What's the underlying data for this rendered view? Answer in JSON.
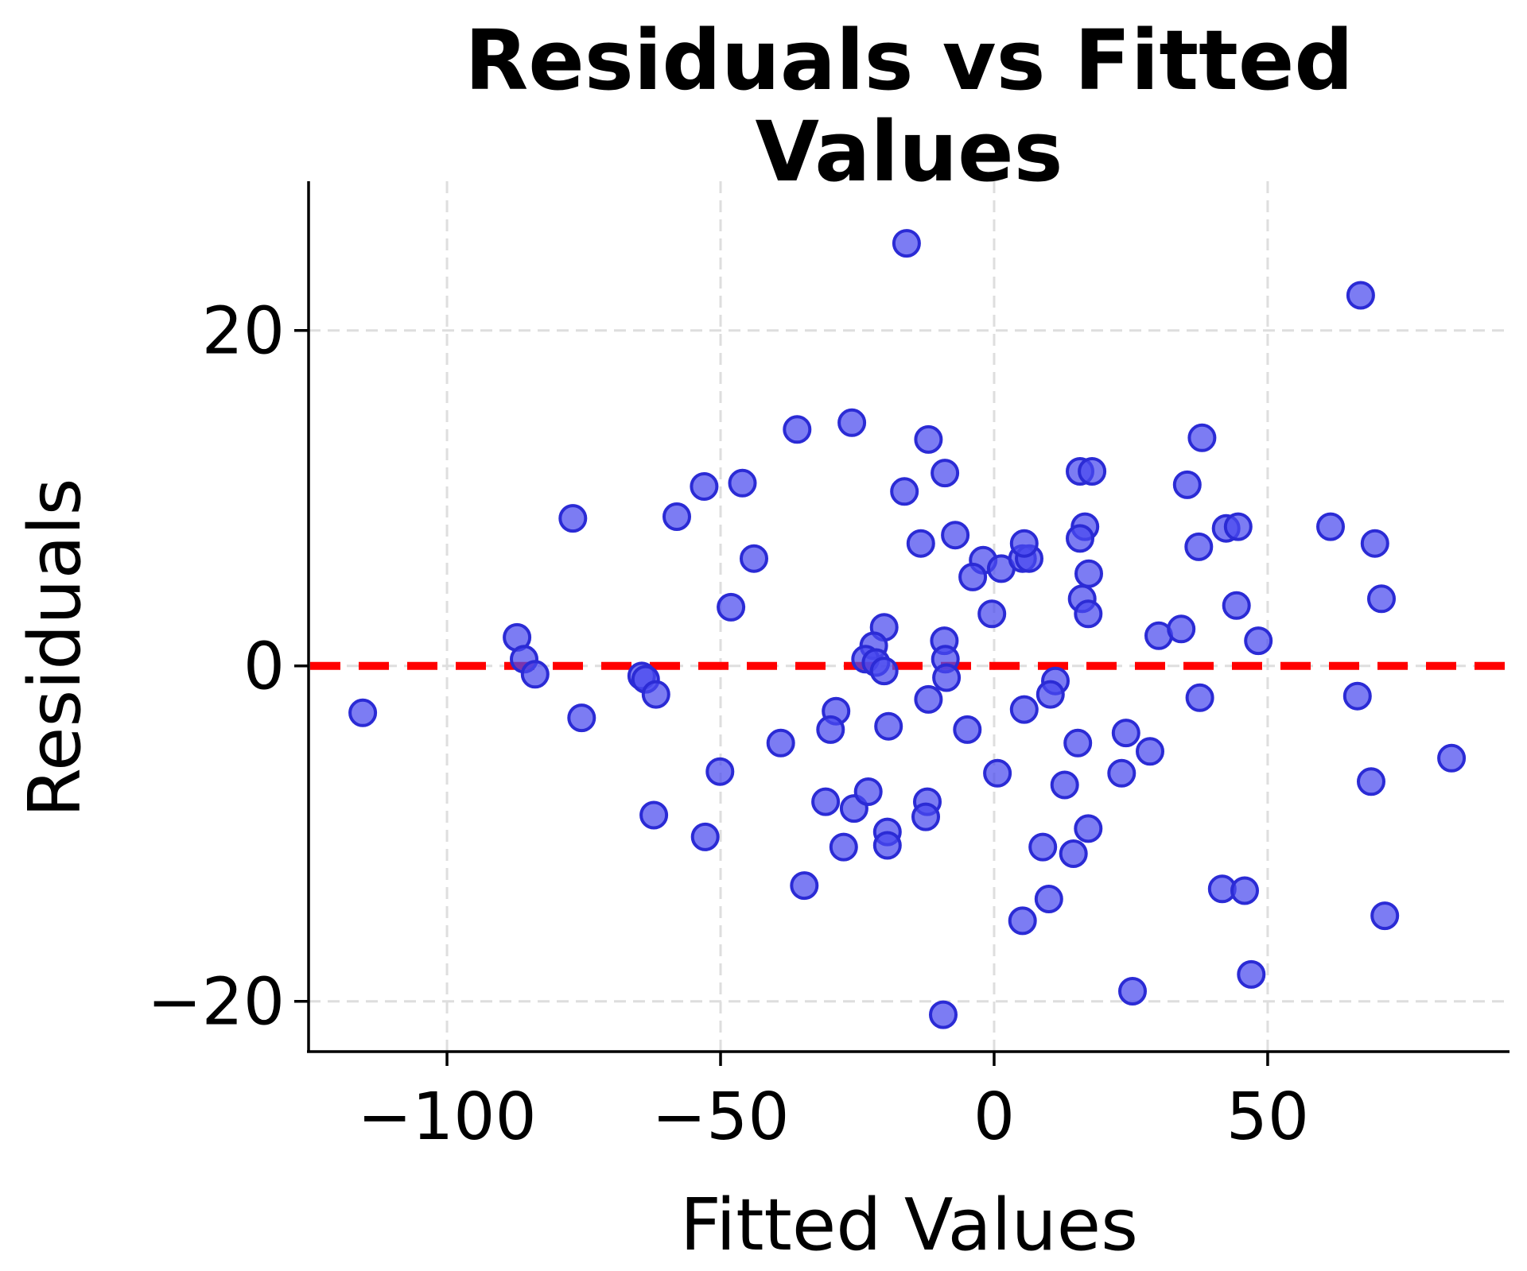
{
  "chart_data": {
    "type": "scatter",
    "title": "Residuals vs Fitted Values",
    "title_lines": [
      "Residuals vs Fitted",
      "Values"
    ],
    "xlabel": "Fitted Values",
    "ylabel": "Residuals",
    "xlim": [
      -125.3,
      94.2
    ],
    "ylim": [
      -23.0,
      28.9
    ],
    "x_ticks": [
      -100,
      -50,
      0,
      50
    ],
    "y_ticks": [
      -20,
      0,
      20
    ],
    "grid": true,
    "legend": false,
    "reference_line": {
      "y": 0,
      "color": "#ff0000",
      "style": "dashed"
    },
    "marker": {
      "fill": "#4a4aee",
      "fill_opacity": 0.72,
      "edge": "#2b2bd5",
      "radius": 16,
      "edge_width": 4
    },
    "grid_color": "#dedede",
    "spine_color": "#000000",
    "points": [
      [
        -16.0,
        25.2
      ],
      [
        67.0,
        22.1
      ],
      [
        -36.0,
        14.1
      ],
      [
        -26.0,
        14.5
      ],
      [
        -12.0,
        13.5
      ],
      [
        38.0,
        13.6
      ],
      [
        -9.0,
        11.5
      ],
      [
        15.7,
        11.6
      ],
      [
        17.9,
        11.6
      ],
      [
        -46.0,
        10.9
      ],
      [
        -53.0,
        10.7
      ],
      [
        35.3,
        10.8
      ],
      [
        -16.4,
        10.4
      ],
      [
        -77.0,
        8.8
      ],
      [
        -58.0,
        8.9
      ],
      [
        42.4,
        8.2
      ],
      [
        44.6,
        8.3
      ],
      [
        61.5,
        8.3
      ],
      [
        69.6,
        7.3
      ],
      [
        37.4,
        7.1
      ],
      [
        -13.4,
        7.3
      ],
      [
        -7.1,
        7.8
      ],
      [
        -43.9,
        6.4
      ],
      [
        -48.1,
        3.5
      ],
      [
        -2.0,
        6.3
      ],
      [
        -3.9,
        5.3
      ],
      [
        1.3,
        5.8
      ],
      [
        5.2,
        6.4
      ],
      [
        6.4,
        6.4
      ],
      [
        5.5,
        7.3
      ],
      [
        16.6,
        8.3
      ],
      [
        15.7,
        7.6
      ],
      [
        17.3,
        5.5
      ],
      [
        -0.4,
        3.1
      ],
      [
        16.1,
        4.0
      ],
      [
        17.2,
        3.1
      ],
      [
        44.3,
        3.6
      ],
      [
        70.8,
        4.0
      ],
      [
        30.1,
        1.8
      ],
      [
        34.2,
        2.2
      ],
      [
        48.3,
        1.5
      ],
      [
        -87.2,
        1.7
      ],
      [
        -85.9,
        0.4
      ],
      [
        -83.9,
        -0.5
      ],
      [
        -64.4,
        -0.6
      ],
      [
        -63.7,
        -0.8
      ],
      [
        -61.8,
        -1.7
      ],
      [
        -115.4,
        -2.8
      ],
      [
        -75.4,
        -3.1
      ],
      [
        -20.1,
        2.3
      ],
      [
        -22.0,
        1.2
      ],
      [
        -23.5,
        0.4
      ],
      [
        -21.6,
        0.2
      ],
      [
        -20.1,
        -0.3
      ],
      [
        -9.1,
        1.5
      ],
      [
        -8.9,
        0.4
      ],
      [
        -8.7,
        -0.7
      ],
      [
        -12.0,
        -2.0
      ],
      [
        -28.9,
        -2.7
      ],
      [
        -29.9,
        -3.8
      ],
      [
        -39.0,
        -4.6
      ],
      [
        -19.3,
        -3.6
      ],
      [
        -4.9,
        -3.8
      ],
      [
        5.5,
        -2.6
      ],
      [
        11.2,
        -0.9
      ],
      [
        10.3,
        -1.7
      ],
      [
        15.3,
        -4.6
      ],
      [
        37.6,
        -1.9
      ],
      [
        66.4,
        -1.8
      ],
      [
        24.1,
        -4.0
      ],
      [
        28.5,
        -5.1
      ],
      [
        23.3,
        -6.4
      ],
      [
        83.6,
        -5.5
      ],
      [
        68.9,
        -6.9
      ],
      [
        -62.2,
        -8.9
      ],
      [
        -52.8,
        -10.2
      ],
      [
        -50.1,
        -6.3
      ],
      [
        -30.8,
        -8.1
      ],
      [
        -25.6,
        -8.5
      ],
      [
        -23.0,
        -7.5
      ],
      [
        -12.2,
        -8.1
      ],
      [
        -12.5,
        -9.0
      ],
      [
        -19.5,
        -9.9
      ],
      [
        -19.5,
        -10.7
      ],
      [
        -27.5,
        -10.8
      ],
      [
        -34.7,
        -13.1
      ],
      [
        0.6,
        -6.4
      ],
      [
        12.9,
        -7.1
      ],
      [
        17.2,
        -9.7
      ],
      [
        8.9,
        -10.8
      ],
      [
        14.5,
        -11.2
      ],
      [
        10.0,
        -13.9
      ],
      [
        5.2,
        -15.2
      ],
      [
        -9.3,
        -20.8
      ],
      [
        41.7,
        -13.3
      ],
      [
        45.8,
        -13.4
      ],
      [
        71.4,
        -14.9
      ],
      [
        47.0,
        -18.4
      ],
      [
        25.3,
        -19.4
      ]
    ]
  }
}
